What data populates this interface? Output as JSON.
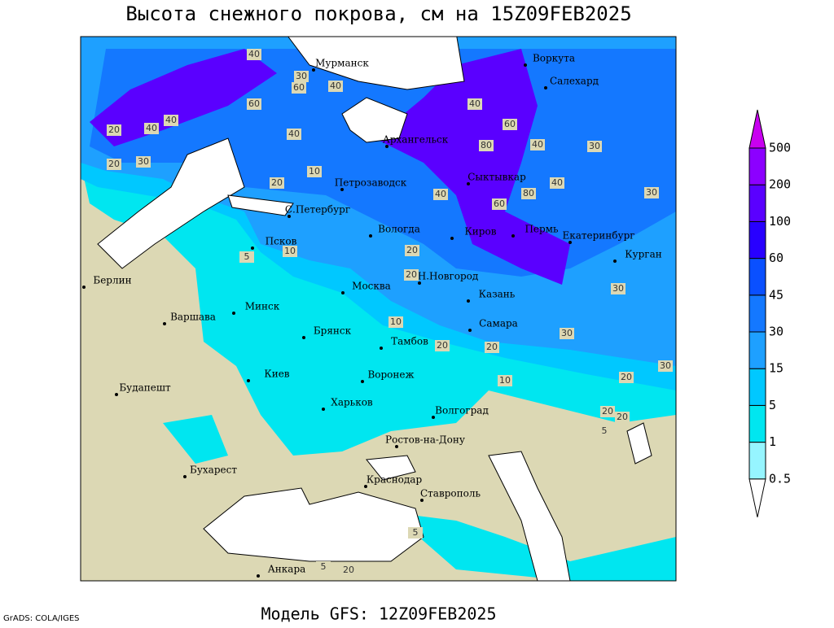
{
  "title": "Высота снежного покрова, см на 15Z09FEB2025",
  "footer": "Модель GFS: 12Z09FEB2025",
  "credit": "GrADS: COLA/IGES",
  "colorbar": {
    "levels": [
      0.5,
      1,
      5,
      15,
      30,
      45,
      60,
      100,
      200,
      500
    ],
    "colors": [
      "#ffffff",
      "#96f5ff",
      "#00e6f0",
      "#00c8ff",
      "#1ea0ff",
      "#1478ff",
      "#0a50ff",
      "#2800ff",
      "#5a00ff",
      "#8c00ff",
      "#c800f0"
    ]
  },
  "cities": [
    "Мурманск",
    "Воркута",
    "Салехард",
    "Архангельск",
    "Петрозаводск",
    "Сыктывкар",
    "С.Петербург",
    "Вологда",
    "Киров",
    "Пермь",
    "Екатеринбург",
    "Псков",
    "Курган",
    "Берлин",
    "Н.Новгород",
    "Москва",
    "Казань",
    "Минск",
    "Варшава",
    "Брянск",
    "Самара",
    "Тамбов",
    "Киев",
    "Воронеж",
    "Будапешт",
    "Харьков",
    "Волгоград",
    "Ростов-на-Дону",
    "Бухарест",
    "Краснодар",
    "Ставрополь",
    "Анкара"
  ],
  "contour_labels": [
    40,
    30,
    60,
    40,
    40,
    20,
    40,
    60,
    80,
    40,
    20,
    30,
    40,
    40,
    60,
    80,
    40,
    30,
    20,
    10,
    20,
    40,
    60,
    30,
    20,
    5,
    10,
    30,
    20,
    10,
    20,
    5,
    20,
    20,
    5,
    20,
    5,
    30,
    30,
    20,
    10
  ]
}
